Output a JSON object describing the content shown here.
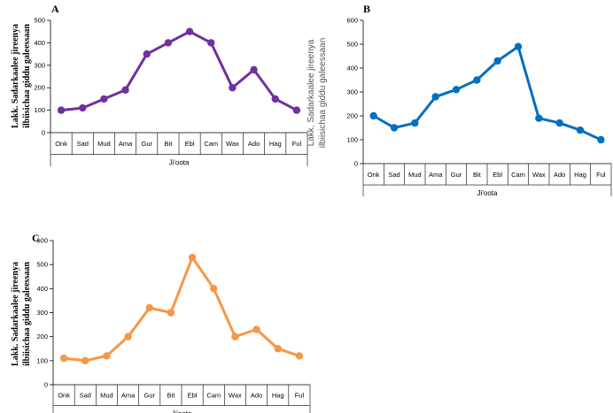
{
  "chart_data": [
    {
      "panel": "A",
      "type": "line",
      "categories": [
        "Onk",
        "Sad",
        "Mud",
        "Ama",
        "Gur",
        "Bit",
        "Ebl",
        "Cam",
        "Wax",
        "Ado",
        "Hag",
        "Ful"
      ],
      "values": [
        100,
        110,
        150,
        190,
        350,
        400,
        450,
        400,
        200,
        280,
        150,
        100
      ],
      "ylim": [
        0,
        500
      ],
      "yticks": [
        0,
        100,
        200,
        300,
        400,
        500
      ],
      "xlabel": "Ji'oota",
      "ylabel_lines": [
        "Lakk. Sadarkaalee jireenya",
        "ilbiisichaa giddu galeessaan"
      ],
      "color": "#7030a0",
      "grid": false
    },
    {
      "panel": "B",
      "type": "line",
      "categories": [
        "Onk",
        "Sad",
        "Mud",
        "Ama",
        "Gur",
        "Bit",
        "Ebl",
        "Cam",
        "Wax",
        "Ado",
        "Hag",
        "Ful"
      ],
      "values": [
        200,
        150,
        170,
        280,
        310,
        350,
        430,
        490,
        190,
        170,
        140,
        100
      ],
      "ylim": [
        0,
        600
      ],
      "yticks": [
        0,
        100,
        200,
        300,
        400,
        500,
        600
      ],
      "xlabel": "Ji'oota",
      "ylabel_lines": [
        "Lakk. Sadarkaalee jireenya",
        "ilbiisichaa giddu galeessaan"
      ],
      "color": "#0070c0",
      "grid": false
    },
    {
      "panel": "C",
      "type": "line",
      "categories": [
        "Onk",
        "Sad",
        "Mud",
        "Ama",
        "Gur",
        "Bit",
        "Ebl",
        "Cam",
        "Wax",
        "Ado",
        "Hag",
        "Ful"
      ],
      "values": [
        110,
        100,
        120,
        200,
        320,
        300,
        530,
        400,
        200,
        230,
        150,
        120
      ],
      "ylim": [
        0,
        600
      ],
      "yticks": [
        0,
        100,
        200,
        300,
        400,
        500,
        600
      ],
      "xlabel": "Ji'oota",
      "ylabel_lines": [
        "Lakk. Sadarkaalee jireenya",
        "ilbiisichaa giddu galeessaan"
      ],
      "color": "#f79646",
      "grid": false
    }
  ]
}
